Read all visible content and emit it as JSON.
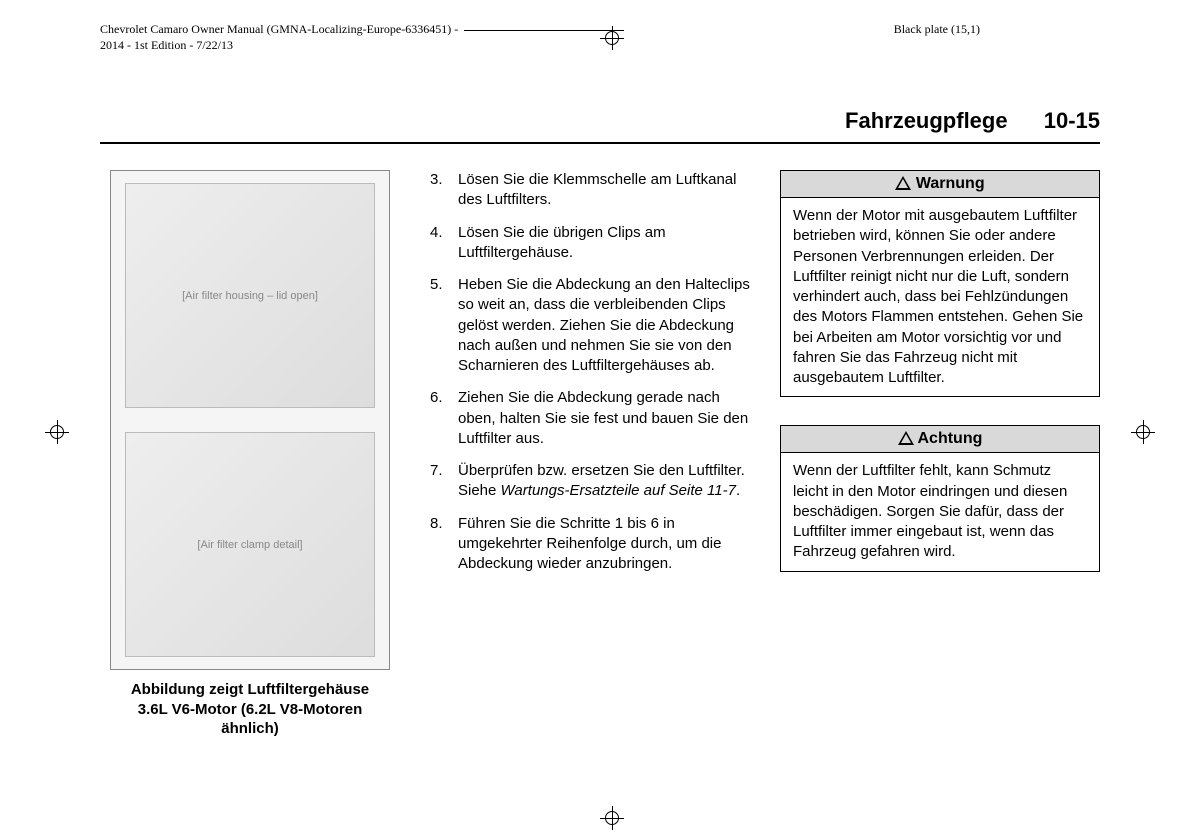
{
  "meta": {
    "line1": "Chevrolet Camaro Owner Manual (GMNA-Localizing-Europe-6336451) -",
    "line2": "2014 - 1st Edition - 7/22/13",
    "black_plate": "Black plate (15,1)"
  },
  "header": {
    "section": "Fahrzeugpflege",
    "page": "10-15"
  },
  "figure": {
    "placeholder_top": "[Air filter housing – lid open]",
    "placeholder_bottom": "[Air filter clamp detail]",
    "caption_l1": "Abbildung zeigt Luftfiltergehäuse",
    "caption_l2": "3.6L V6-Motor (6.2L V8-Motoren",
    "caption_l3": "ähnlich)"
  },
  "steps": {
    "s3": "Lösen Sie die Klemmschelle am Luftkanal des Luftfilters.",
    "s4": "Lösen Sie die übrigen Clips am Luftfiltergehäuse.",
    "s5": "Heben Sie die Abdeckung an den Halteclips so weit an, dass die verbleibenden Clips gelöst werden. Ziehen Sie die Abdeckung nach außen und nehmen Sie sie von den Scharnieren des Luftfiltergehäuses ab.",
    "s6": "Ziehen Sie die Abdeckung gerade nach oben, halten Sie sie fest und bauen Sie den Luftfilter aus.",
    "s7a": "Überprüfen bzw. ersetzen Sie den Luftfilter. Siehe ",
    "s7b": "Wartungs-Ersatzteile auf Seite 11-7",
    "s7c": ".",
    "s8": "Führen Sie die Schritte 1 bis 6 in umgekehrter Reihenfolge durch, um die Abdeckung wieder anzubringen."
  },
  "warning": {
    "title": "Warnung",
    "body": "Wenn der Motor mit ausgebautem Luftfilter betrieben wird, können Sie oder andere Personen Verbrennungen erleiden. Der Luftfilter reinigt nicht nur die Luft, sondern verhindert auch, dass bei Fehlzündungen des Motors Flammen entstehen. Gehen Sie bei Arbeiten am Motor vorsichtig vor und fahren Sie das Fahrzeug nicht mit ausgebautem Luftfilter."
  },
  "caution": {
    "title": "Achtung",
    "body": "Wenn der Luftfilter fehlt, kann Schmutz leicht in den Motor eindringen und diesen beschädigen. Sorgen Sie dafür, dass der Luftfilter immer eingebaut ist, wenn das Fahrzeug gefahren wird."
  }
}
